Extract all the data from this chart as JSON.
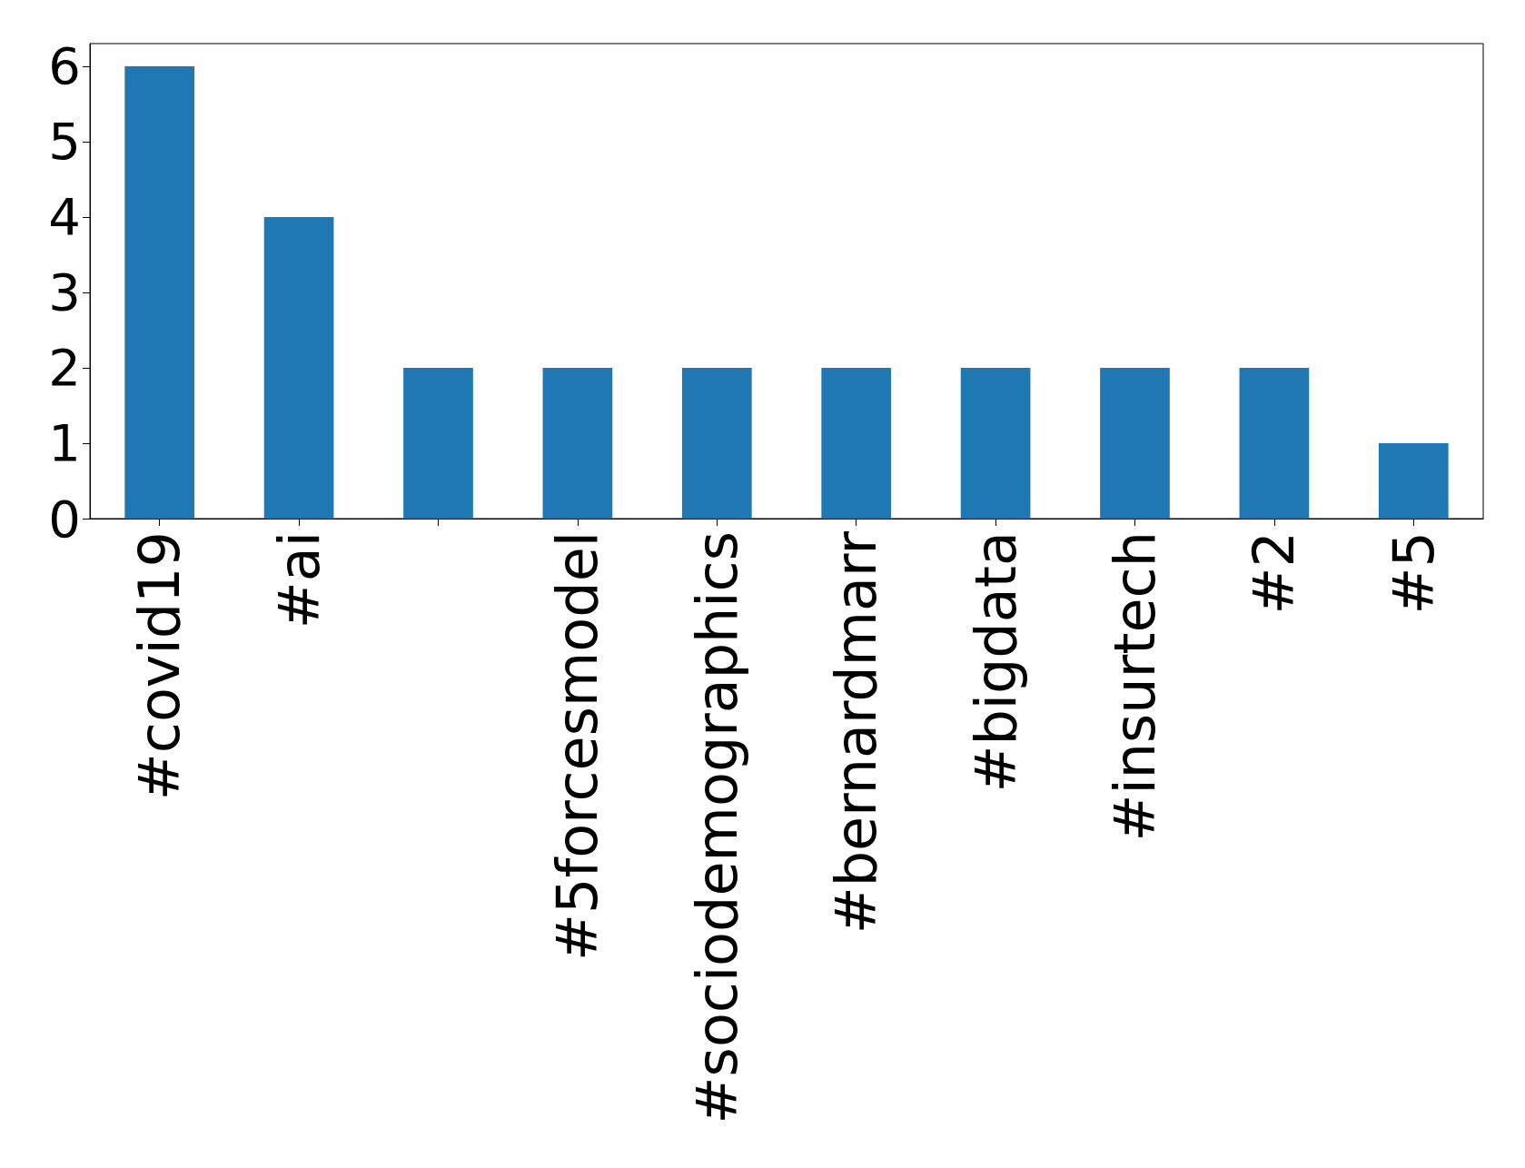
{
  "chart_data": {
    "type": "bar",
    "categories": [
      "#covid19",
      "#ai",
      null,
      "#5forcesmodel",
      "#sociodemographics",
      "#bernardmarr",
      "#bigdata",
      "#insurtech",
      "#2",
      "#5"
    ],
    "values": [
      6,
      4,
      2,
      2,
      2,
      2,
      2,
      2,
      2,
      1
    ],
    "color": "#1f77b4",
    "ylim": [
      0,
      6.3
    ],
    "yticks": [
      0,
      1,
      2,
      3,
      4,
      5,
      6
    ],
    "grid": false
  }
}
